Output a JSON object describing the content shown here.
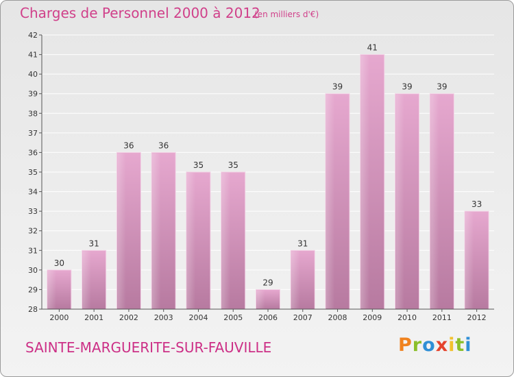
{
  "header": {
    "title": "Charges de Personnel 2000 à 2012",
    "subtitle": "(en milliers d'€)"
  },
  "footer": {
    "location": "SAINTE-MARGUERITE-SUR-FAUVILLE",
    "brand": "Proxiti",
    "brand_colors": [
      "#f0821e",
      "#8bbf2a",
      "#2f8fd6",
      "#e5432d",
      "#f2c12e",
      "#8bbf2a",
      "#2f8fd6"
    ]
  },
  "colors": {
    "title": "#d0408a",
    "bar_top": "#e6a8cf",
    "bar_bottom": "#b77aa0",
    "axis": "#555555"
  },
  "chart_data": {
    "type": "bar",
    "categories": [
      "2000",
      "2001",
      "2002",
      "2003",
      "2004",
      "2005",
      "2006",
      "2007",
      "2008",
      "2009",
      "2010",
      "2011",
      "2012"
    ],
    "values": [
      30,
      31,
      36,
      36,
      35,
      35,
      29,
      31,
      39,
      41,
      39,
      39,
      33
    ],
    "ylim": [
      28,
      42
    ],
    "yticks": [
      28,
      29,
      30,
      31,
      32,
      33,
      34,
      35,
      36,
      37,
      38,
      39,
      40,
      41,
      42
    ],
    "grid": true,
    "legend": "none"
  }
}
